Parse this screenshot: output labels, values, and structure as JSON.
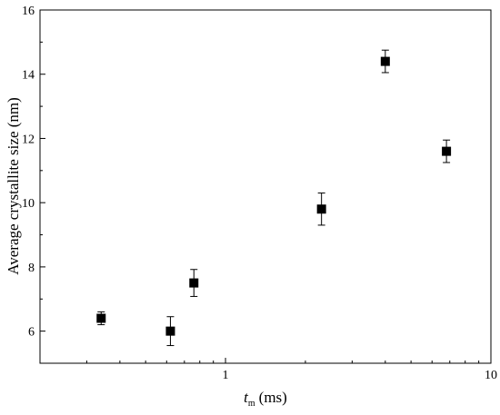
{
  "chart_data": {
    "type": "scatter",
    "xlabel": {
      "symbol": "t",
      "subscript": "m",
      "unit": "(ms)"
    },
    "ylabel": "Average crystallite size (nm)",
    "x_scale": "log",
    "xlim": [
      0.2,
      10
    ],
    "ylim": [
      5,
      16
    ],
    "x_ticks": [
      {
        "value": 1,
        "label": "1"
      },
      {
        "value": 10,
        "label": "10"
      }
    ],
    "y_ticks": [
      {
        "value": 6,
        "label": "6"
      },
      {
        "value": 8,
        "label": "8"
      },
      {
        "value": 10,
        "label": "10"
      },
      {
        "value": 12,
        "label": "12"
      },
      {
        "value": 14,
        "label": "14"
      },
      {
        "value": 16,
        "label": "16"
      }
    ],
    "points": [
      {
        "x": 0.34,
        "y": 6.4,
        "err": 0.2
      },
      {
        "x": 0.62,
        "y": 6.0,
        "err": 0.45
      },
      {
        "x": 0.76,
        "y": 7.5,
        "err": 0.42
      },
      {
        "x": 2.3,
        "y": 9.8,
        "err": 0.5
      },
      {
        "x": 4.0,
        "y": 14.4,
        "err": 0.35
      },
      {
        "x": 6.8,
        "y": 11.6,
        "err": 0.35
      }
    ],
    "grid": false,
    "marker": "filled-square",
    "color": "#000000"
  }
}
